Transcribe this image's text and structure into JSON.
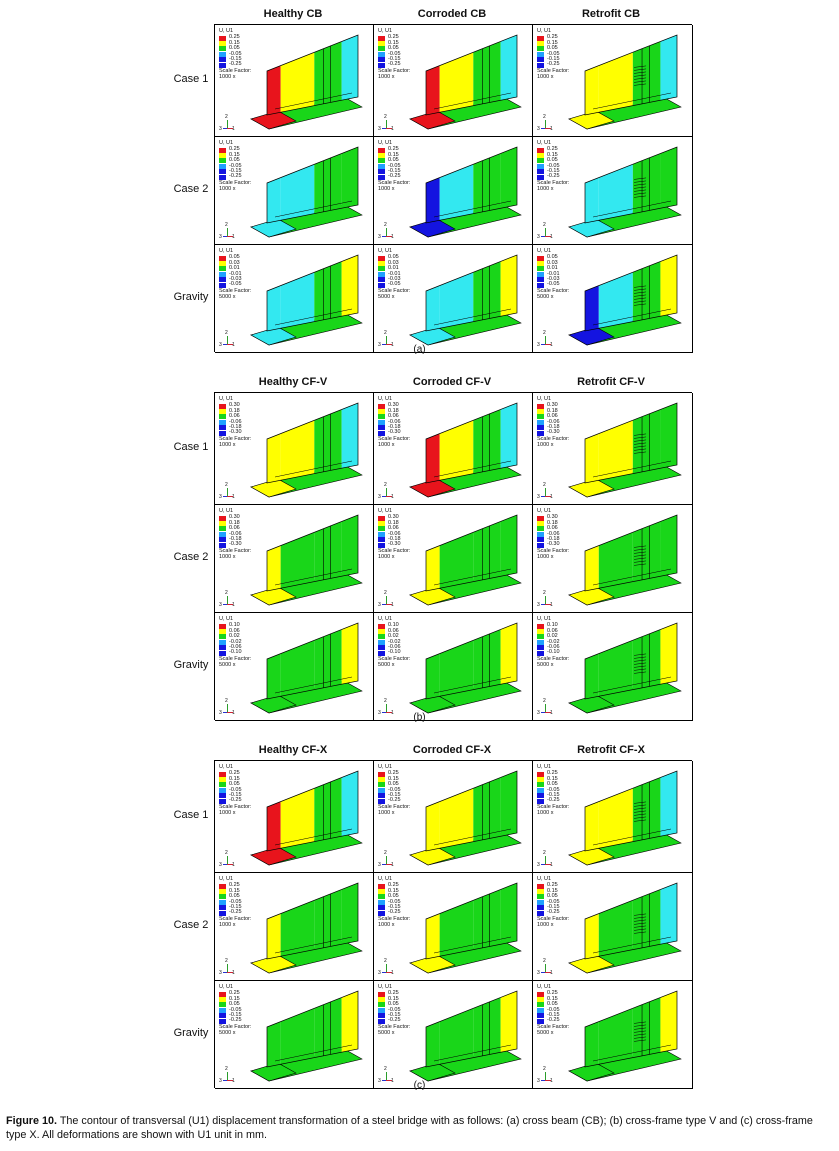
{
  "panels": [
    {
      "columns": [
        "Healthy CB",
        "Corroded CB",
        "Retrofit CB"
      ],
      "rows": [
        "Case 1",
        "Case 2",
        "Gravity"
      ],
      "sub_label": "(a)",
      "legends": [
        {
          "values": [
            "0.25",
            "0.15",
            "0.05",
            "-0.05",
            "-0.15",
            "-0.25"
          ],
          "scale": "1000 x"
        },
        {
          "values": [
            "0.25",
            "0.15",
            "0.05",
            "-0.05",
            "-0.15",
            "-0.25"
          ],
          "scale": "1000 x"
        },
        {
          "values": [
            "0.05",
            "0.03",
            "0.01",
            "-0.01",
            "-0.03",
            "-0.05"
          ],
          "scale": "5000 x"
        }
      ]
    },
    {
      "columns": [
        "Healthy CF-V",
        "Corroded CF-V",
        "Retrofit CF-V"
      ],
      "rows": [
        "Case 1",
        "Case 2",
        "Gravity"
      ],
      "sub_label": "(b)",
      "legends": [
        {
          "values": [
            "0.30",
            "0.18",
            "0.06",
            "-0.06",
            "-0.18",
            "-0.30"
          ],
          "scale": "1000 x"
        },
        {
          "values": [
            "0.30",
            "0.18",
            "0.06",
            "-0.06",
            "-0.18",
            "-0.30"
          ],
          "scale": "1000 x"
        },
        {
          "values": [
            "0.10",
            "0.06",
            "0.02",
            "-0.02",
            "-0.06",
            "-0.10"
          ],
          "scale": "5000 x"
        }
      ]
    },
    {
      "columns": [
        "Healthy CF-X",
        "Corroded CF-X",
        "Retrofit CF-X"
      ],
      "rows": [
        "Case 1",
        "Case 2",
        "Gravity"
      ],
      "sub_label": "(c)",
      "legends": [
        {
          "values": [
            "0.25",
            "0.15",
            "0.05",
            "-0.05",
            "-0.15",
            "-0.25"
          ],
          "scale": "1000 x"
        },
        {
          "values": [
            "0.25",
            "0.15",
            "0.05",
            "-0.05",
            "-0.15",
            "-0.25"
          ],
          "scale": "1000 x"
        },
        {
          "values": [
            "0.25",
            "0.15",
            "0.05",
            "-0.05",
            "-0.15",
            "-0.25"
          ],
          "scale": "5000 x"
        }
      ]
    }
  ],
  "legend_title": "U, U1",
  "scale_label": "Scale Factor:",
  "axis_labels": {
    "vertical": "2",
    "left": "3",
    "right": "1"
  },
  "colors": {
    "red": "#e8141c",
    "yellow": "#ffff00",
    "green": "#19d619",
    "cyan": "#33e8f0",
    "blue": "#1414e0",
    "legend_mid": "#1fa0ff"
  },
  "caption": {
    "label": "Figure 10.",
    "text": " The contour of transversal (U1) displacement transformation of a steel bridge with as follows: (a) cross beam (CB); (b) cross-frame type V and (c) cross-frame type X. All deformations are shown with U1 unit in mm."
  }
}
